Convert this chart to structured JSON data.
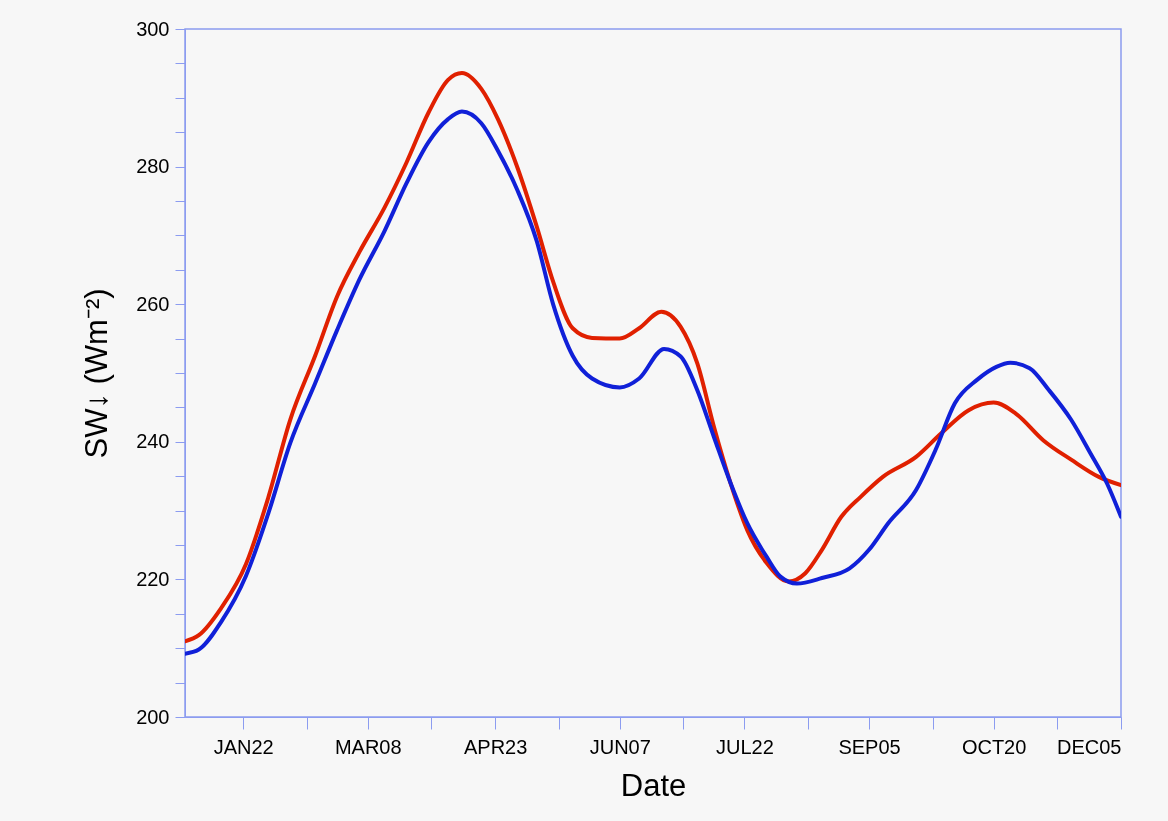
{
  "chart_data": {
    "type": "line",
    "xlabel": "Date",
    "ylabel": "SW↓ (Wm⁻²)",
    "xlim": [
      "--01-01",
      "--12-05"
    ],
    "ylim": [
      200,
      300
    ],
    "xticks": [
      {
        "value": "--01-22",
        "label": "JAN22"
      },
      {
        "value": "--02-14",
        "label": null
      },
      {
        "value": "--03-08",
        "label": "MAR08"
      },
      {
        "value": "--03-31",
        "label": null
      },
      {
        "value": "--04-23",
        "label": "APR23"
      },
      {
        "value": "--05-16",
        "label": null
      },
      {
        "value": "--06-07",
        "label": "JUN07"
      },
      {
        "value": "--06-30",
        "label": null
      },
      {
        "value": "--07-22",
        "label": "JUL22"
      },
      {
        "value": "--08-14",
        "label": null
      },
      {
        "value": "--09-05",
        "label": "SEP05"
      },
      {
        "value": "--09-28",
        "label": null
      },
      {
        "value": "--10-20",
        "label": "OCT20"
      },
      {
        "value": "--11-12",
        "label": null
      },
      {
        "value": "--12-05",
        "label": "DEC05"
      }
    ],
    "yticks": [
      200,
      {
        "value": 205,
        "label": null
      },
      {
        "value": 210,
        "label": null
      },
      {
        "value": 215,
        "label": null
      },
      220,
      {
        "value": 225,
        "label": null
      },
      {
        "value": 230,
        "label": null
      },
      {
        "value": 235,
        "label": null
      },
      240,
      {
        "value": 245,
        "label": null
      },
      {
        "value": 250,
        "label": null
      },
      {
        "value": 255,
        "label": null
      },
      260,
      {
        "value": 265,
        "label": null
      },
      {
        "value": 270,
        "label": null
      },
      {
        "value": 275,
        "label": null
      },
      280,
      {
        "value": 285,
        "label": null
      },
      {
        "value": 290,
        "label": null
      },
      {
        "value": 295,
        "label": null
      },
      300
    ],
    "series": [
      {
        "color": "#e02000",
        "x": [
          "--01-01",
          "--01-06",
          "--01-14",
          "--01-23",
          "--01-31",
          "--02-08",
          "--02-17",
          "--02-25",
          "--03-05",
          "--03-14",
          "--03-22",
          "--03-30",
          "--04-06",
          "--04-11",
          "--04-18",
          "--04-24",
          "--05-01",
          "--05-08",
          "--05-14",
          "--05-21",
          "--05-28",
          "--06-07",
          "--06-14",
          "--06-22",
          "--06-29",
          "--07-05",
          "--07-11",
          "--07-17",
          "--07-23",
          "--07-30",
          "--08-07",
          "--08-13",
          "--08-19",
          "--08-26",
          "--09-02",
          "--09-10",
          "--09-22",
          "--10-01",
          "--10-11",
          "--10-20",
          "--10-28",
          "--11-07",
          "--11-17",
          "--11-27",
          "--12-05"
        ],
        "values": [
          211.0,
          211.9,
          215.8,
          222.2,
          231.8,
          243.2,
          252.5,
          261.2,
          267.6,
          274.0,
          280.6,
          287.9,
          292.6,
          293.6,
          291.3,
          286.9,
          279.9,
          271.3,
          263.2,
          256.5,
          255.1,
          255.0,
          256.5,
          258.9,
          256.7,
          251.4,
          242.2,
          234.0,
          227.2,
          222.4,
          219.7,
          220.9,
          224.3,
          229.1,
          232.0,
          234.9,
          237.8,
          241.2,
          244.6,
          245.7,
          244.1,
          240.2,
          237.4,
          234.9,
          233.7
        ]
      },
      {
        "color": "#1020d8",
        "x": [
          "--01-01",
          "--01-06",
          "--01-14",
          "--01-23",
          "--01-31",
          "--02-08",
          "--02-17",
          "--02-25",
          "--03-05",
          "--03-14",
          "--03-22",
          "--03-30",
          "--04-06",
          "--04-11",
          "--04-18",
          "--04-24",
          "--05-01",
          "--05-08",
          "--05-14",
          "--05-21",
          "--05-28",
          "--06-07",
          "--06-14",
          "--06-23",
          "--06-29",
          "--07-05",
          "--07-11",
          "--07-17",
          "--07-23",
          "--07-30",
          "--08-04",
          "--08-10",
          "--08-19",
          "--08-29",
          "--09-05",
          "--09-12",
          "--09-22",
          "--09-29",
          "--10-06",
          "--10-14",
          "--10-21",
          "--10-26",
          "--11-02",
          "--11-09",
          "--11-17",
          "--11-24",
          "--11-30",
          "--12-05"
        ],
        "values": [
          209.2,
          209.8,
          213.8,
          220.5,
          229.5,
          239.8,
          248.5,
          256.3,
          263.6,
          270.6,
          277.6,
          283.6,
          286.9,
          288.0,
          286.3,
          282.3,
          276.6,
          269.2,
          259.9,
          252.5,
          249.2,
          247.9,
          249.2,
          253.5,
          252.4,
          247.5,
          240.7,
          234.0,
          228.2,
          223.3,
          220.4,
          219.4,
          220.2,
          221.6,
          224.3,
          228.2,
          233.0,
          238.8,
          245.6,
          249.0,
          250.9,
          251.5,
          250.7,
          247.5,
          243.2,
          238.3,
          233.9,
          229.1
        ]
      }
    ]
  }
}
